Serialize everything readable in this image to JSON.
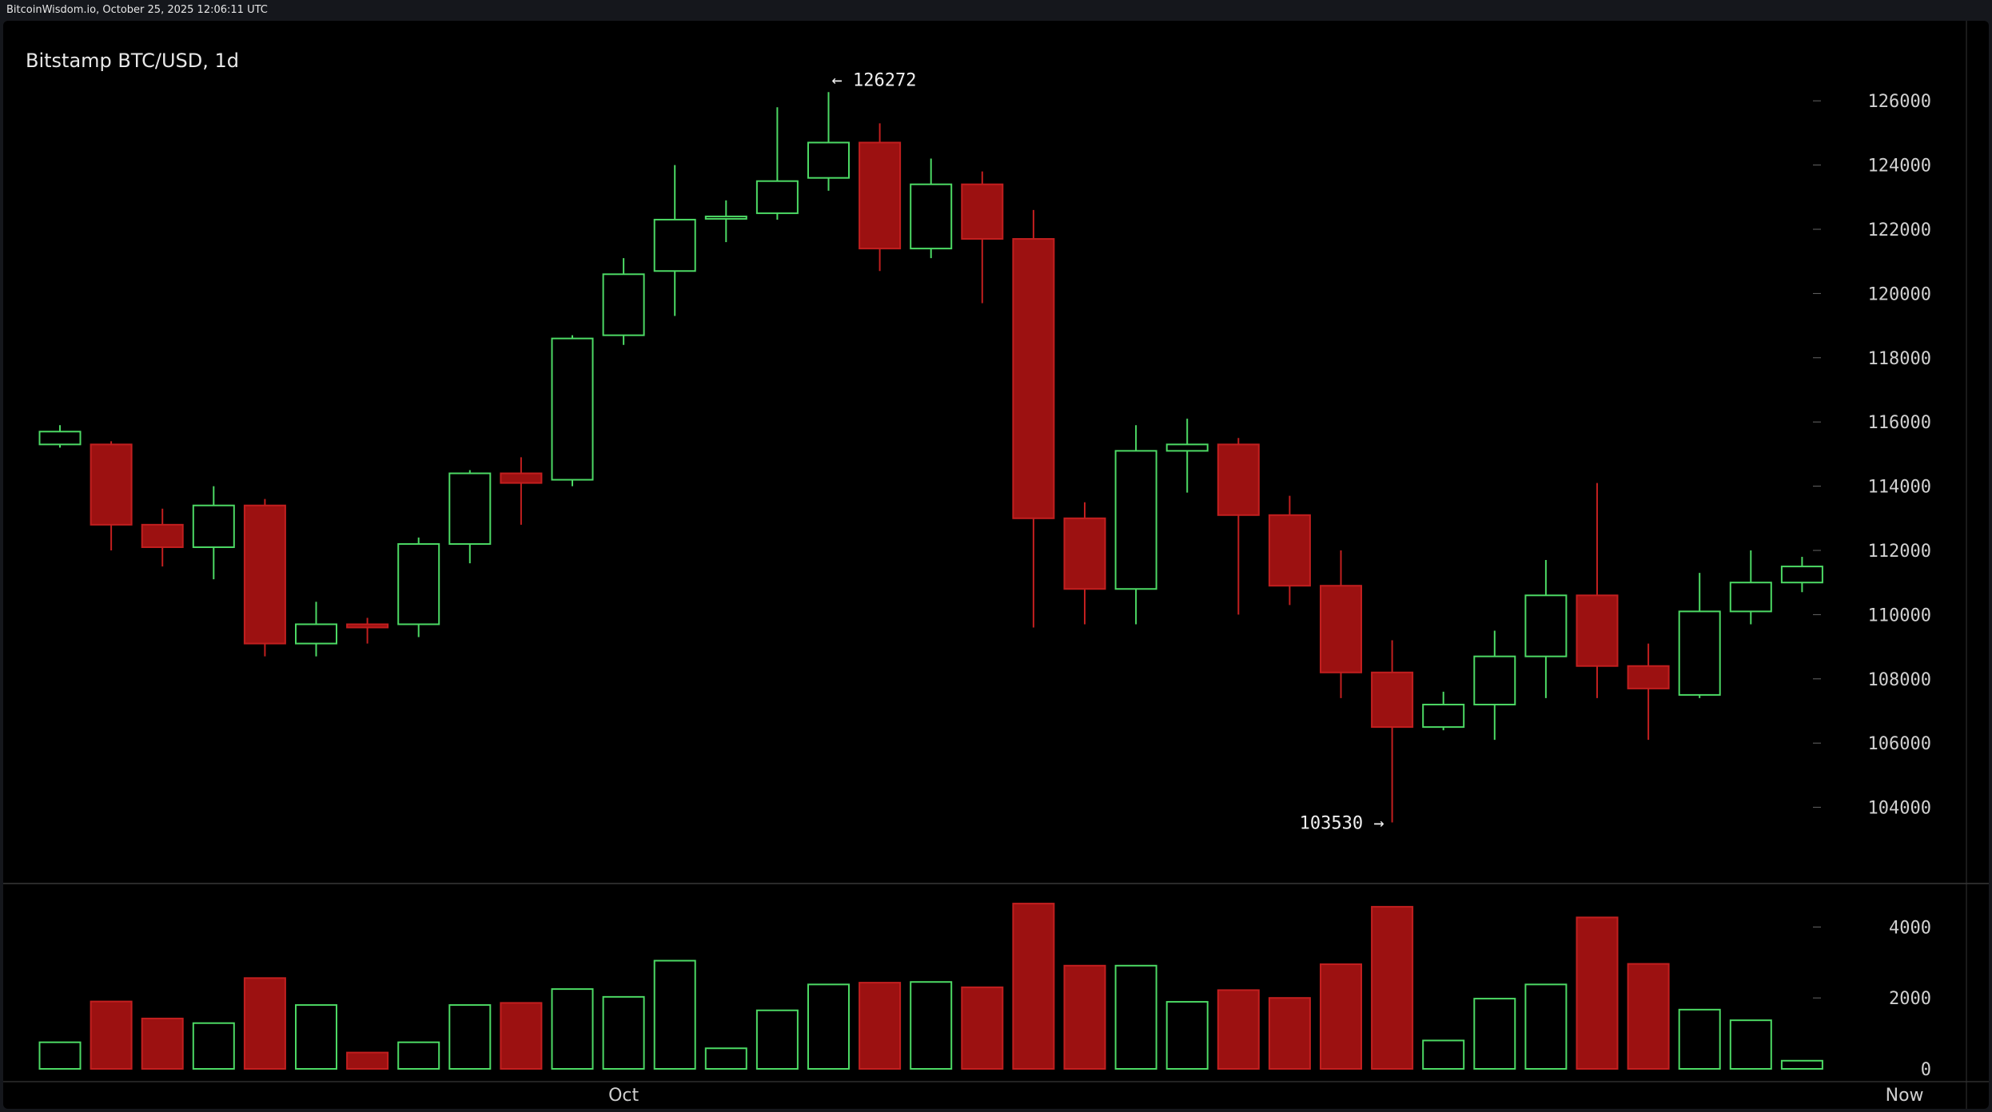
{
  "header": {
    "source_line": "BitcoinWisdom.io, October 25, 2025 12:06:11 UTC"
  },
  "chart_title": "Bitstamp BTC/USD, 1d",
  "colors": {
    "up": "#4cd964",
    "down": "#9c1111",
    "down_edge": "#c21f1f",
    "background": "#000000",
    "text": "#e6e6e6",
    "axis_tick": "#666666"
  },
  "chart_data": [
    {
      "type": "candlestick",
      "title": "Bitstamp BTC/USD, 1d",
      "ylim": [
        102000,
        127000
      ],
      "y_ticks": [
        104000,
        106000,
        108000,
        110000,
        112000,
        114000,
        116000,
        118000,
        120000,
        122000,
        124000,
        126000
      ],
      "annotations": [
        {
          "label": "← 126272",
          "value": 126272,
          "candle": 15
        },
        {
          "label": "103530 →",
          "value": 103530,
          "candle": 26
        }
      ],
      "candles": [
        {
          "o": 115300,
          "h": 115900,
          "l": 115200,
          "c": 115700
        },
        {
          "o": 115300,
          "h": 115400,
          "l": 112000,
          "c": 112800
        },
        {
          "o": 112800,
          "h": 113300,
          "l": 111500,
          "c": 112100
        },
        {
          "o": 112100,
          "h": 114000,
          "l": 111100,
          "c": 113400
        },
        {
          "o": 113400,
          "h": 113600,
          "l": 108700,
          "c": 109100
        },
        {
          "o": 109100,
          "h": 110400,
          "l": 108700,
          "c": 109700
        },
        {
          "o": 109700,
          "h": 109900,
          "l": 109100,
          "c": 109600
        },
        {
          "o": 109700,
          "h": 112400,
          "l": 109300,
          "c": 112200
        },
        {
          "o": 112200,
          "h": 114500,
          "l": 111600,
          "c": 114400
        },
        {
          "o": 114400,
          "h": 114900,
          "l": 112800,
          "c": 114100
        },
        {
          "o": 114200,
          "h": 118700,
          "l": 114000,
          "c": 118600
        },
        {
          "o": 118700,
          "h": 121100,
          "l": 118400,
          "c": 120600
        },
        {
          "o": 120700,
          "h": 124000,
          "l": 119300,
          "c": 122300
        },
        {
          "o": 122400,
          "h": 122900,
          "l": 121600,
          "c": 122400
        },
        {
          "o": 122500,
          "h": 125800,
          "l": 122300,
          "c": 123500
        },
        {
          "o": 123600,
          "h": 126272,
          "l": 123200,
          "c": 124700
        },
        {
          "o": 124700,
          "h": 125300,
          "l": 120700,
          "c": 121400
        },
        {
          "o": 121400,
          "h": 124200,
          "l": 121100,
          "c": 123400
        },
        {
          "o": 123400,
          "h": 123800,
          "l": 119700,
          "c": 121700
        },
        {
          "o": 121700,
          "h": 122600,
          "l": 109600,
          "c": 113000
        },
        {
          "o": 113000,
          "h": 113500,
          "l": 109700,
          "c": 110800
        },
        {
          "o": 110800,
          "h": 115900,
          "l": 109700,
          "c": 115100
        },
        {
          "o": 115100,
          "h": 116100,
          "l": 113800,
          "c": 115300
        },
        {
          "o": 115300,
          "h": 115500,
          "l": 110000,
          "c": 113100
        },
        {
          "o": 113100,
          "h": 113700,
          "l": 110300,
          "c": 110900
        },
        {
          "o": 110900,
          "h": 112000,
          "l": 107400,
          "c": 108200
        },
        {
          "o": 108200,
          "h": 109200,
          "l": 103530,
          "c": 106500
        },
        {
          "o": 106500,
          "h": 107600,
          "l": 106400,
          "c": 107200
        },
        {
          "o": 107200,
          "h": 109500,
          "l": 106100,
          "c": 108700
        },
        {
          "o": 108700,
          "h": 111700,
          "l": 107400,
          "c": 110600
        },
        {
          "o": 110600,
          "h": 114100,
          "l": 107400,
          "c": 108400
        },
        {
          "o": 108400,
          "h": 109100,
          "l": 106100,
          "c": 107700
        },
        {
          "o": 107500,
          "h": 111300,
          "l": 107400,
          "c": 110100
        },
        {
          "o": 110100,
          "h": 112000,
          "l": 109700,
          "c": 111000
        },
        {
          "o": 111000,
          "h": 111800,
          "l": 110700,
          "c": 111500
        }
      ]
    },
    {
      "type": "bar",
      "title": "",
      "ylim": [
        0,
        5000
      ],
      "y_ticks": [
        0,
        2000,
        4000
      ],
      "values": [
        750,
        1900,
        1420,
        1290,
        2560,
        1800,
        460,
        750,
        1800,
        1860,
        2250,
        2030,
        3050,
        580,
        1650,
        2380,
        2430,
        2450,
        2300,
        4660,
        2910,
        2910,
        1890,
        2220,
        2000,
        2950,
        4570,
        800,
        1980,
        2380,
        4270,
        2960,
        1670,
        1370,
        230
      ],
      "x_labels": [
        {
          "label": "Oct",
          "candle": 11
        },
        {
          "label": "Now",
          "candle": 36
        }
      ]
    }
  ]
}
